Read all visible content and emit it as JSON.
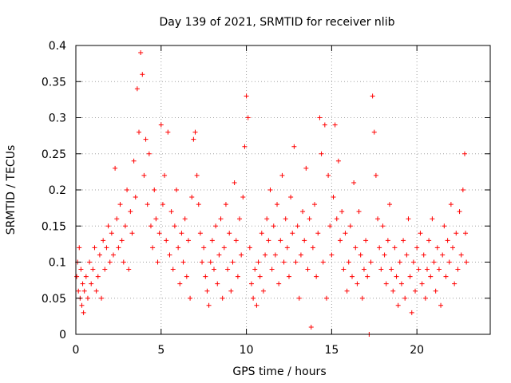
{
  "chart_data": {
    "type": "scatter",
    "title": "Day 139 of 2021, SRMTID for receiver nlib",
    "xlabel": "GPS time / hours",
    "ylabel": "SRMTID / TECUs",
    "xlim": [
      0,
      24.3
    ],
    "ylim": [
      0,
      0.4
    ],
    "xticks": [
      0,
      5,
      10,
      15,
      20
    ],
    "xtick_labels": [
      "0",
      "5",
      "10",
      "15",
      "20"
    ],
    "yticks": [
      0,
      0.05,
      0.1,
      0.15,
      0.2,
      0.25,
      0.3,
      0.35,
      0.4
    ],
    "ytick_labels": [
      "0",
      "0.05",
      "0.1",
      "0.15",
      "0.2",
      "0.25",
      "0.3",
      "0.35",
      "0.4"
    ],
    "grid": true,
    "marker": "plus",
    "series": [
      {
        "name": "SRMTID",
        "color": "#ff0000",
        "points": [
          [
            0.05,
            0.08
          ],
          [
            0.1,
            0.1
          ],
          [
            0.15,
            0.06
          ],
          [
            0.2,
            0.12
          ],
          [
            0.25,
            0.05
          ],
          [
            0.3,
            0.09
          ],
          [
            0.35,
            0.04
          ],
          [
            0.4,
            0.07
          ],
          [
            0.45,
            0.03
          ],
          [
            0.5,
            0.06
          ],
          [
            0.6,
            0.08
          ],
          [
            0.7,
            0.05
          ],
          [
            0.8,
            0.1
          ],
          [
            0.9,
            0.07
          ],
          [
            1.0,
            0.09
          ],
          [
            1.1,
            0.12
          ],
          [
            1.2,
            0.06
          ],
          [
            1.3,
            0.08
          ],
          [
            1.4,
            0.11
          ],
          [
            1.5,
            0.05
          ],
          [
            1.6,
            0.13
          ],
          [
            1.7,
            0.09
          ],
          [
            1.8,
            0.12
          ],
          [
            1.9,
            0.15
          ],
          [
            2.0,
            0.1
          ],
          [
            2.1,
            0.14
          ],
          [
            2.2,
            0.11
          ],
          [
            2.3,
            0.23
          ],
          [
            2.4,
            0.16
          ],
          [
            2.5,
            0.12
          ],
          [
            2.6,
            0.18
          ],
          [
            2.7,
            0.13
          ],
          [
            2.8,
            0.1
          ],
          [
            2.9,
            0.15
          ],
          [
            3.0,
            0.2
          ],
          [
            3.1,
            0.09
          ],
          [
            3.2,
            0.17
          ],
          [
            3.3,
            0.14
          ],
          [
            3.4,
            0.24
          ],
          [
            3.5,
            0.19
          ],
          [
            3.6,
            0.34
          ],
          [
            3.7,
            0.28
          ],
          [
            3.8,
            0.39
          ],
          [
            3.9,
            0.36
          ],
          [
            4.0,
            0.22
          ],
          [
            4.1,
            0.27
          ],
          [
            4.2,
            0.18
          ],
          [
            4.3,
            0.25
          ],
          [
            4.4,
            0.15
          ],
          [
            4.5,
            0.12
          ],
          [
            4.6,
            0.2
          ],
          [
            4.7,
            0.16
          ],
          [
            4.8,
            0.1
          ],
          [
            4.9,
            0.14
          ],
          [
            5.0,
            0.29
          ],
          [
            5.1,
            0.18
          ],
          [
            5.2,
            0.22
          ],
          [
            5.3,
            0.13
          ],
          [
            5.4,
            0.28
          ],
          [
            5.5,
            0.11
          ],
          [
            5.6,
            0.17
          ],
          [
            5.7,
            0.09
          ],
          [
            5.8,
            0.15
          ],
          [
            5.9,
            0.2
          ],
          [
            6.0,
            0.12
          ],
          [
            6.1,
            0.07
          ],
          [
            6.2,
            0.14
          ],
          [
            6.3,
            0.1
          ],
          [
            6.4,
            0.16
          ],
          [
            6.5,
            0.08
          ],
          [
            6.6,
            0.13
          ],
          [
            6.7,
            0.05
          ],
          [
            6.8,
            0.19
          ],
          [
            6.9,
            0.27
          ],
          [
            7.0,
            0.28
          ],
          [
            7.1,
            0.22
          ],
          [
            7.2,
            0.18
          ],
          [
            7.3,
            0.14
          ],
          [
            7.4,
            0.1
          ],
          [
            7.5,
            0.12
          ],
          [
            7.6,
            0.08
          ],
          [
            7.7,
            0.06
          ],
          [
            7.8,
            0.04
          ],
          [
            7.9,
            0.1
          ],
          [
            8.0,
            0.13
          ],
          [
            8.1,
            0.09
          ],
          [
            8.2,
            0.15
          ],
          [
            8.3,
            0.07
          ],
          [
            8.4,
            0.11
          ],
          [
            8.5,
            0.16
          ],
          [
            8.6,
            0.05
          ],
          [
            8.7,
            0.12
          ],
          [
            8.8,
            0.18
          ],
          [
            8.9,
            0.09
          ],
          [
            9.0,
            0.14
          ],
          [
            9.1,
            0.06
          ],
          [
            9.2,
            0.1
          ],
          [
            9.3,
            0.21
          ],
          [
            9.4,
            0.13
          ],
          [
            9.5,
            0.08
          ],
          [
            9.6,
            0.16
          ],
          [
            9.7,
            0.11
          ],
          [
            9.8,
            0.19
          ],
          [
            9.9,
            0.26
          ],
          [
            10.0,
            0.33
          ],
          [
            10.1,
            0.3
          ],
          [
            10.2,
            0.12
          ],
          [
            10.3,
            0.07
          ],
          [
            10.4,
            0.05
          ],
          [
            10.5,
            0.09
          ],
          [
            10.6,
            0.04
          ],
          [
            10.7,
            0.1
          ],
          [
            10.8,
            0.08
          ],
          [
            10.9,
            0.14
          ],
          [
            11.0,
            0.06
          ],
          [
            11.1,
            0.11
          ],
          [
            11.2,
            0.16
          ],
          [
            11.3,
            0.13
          ],
          [
            11.4,
            0.2
          ],
          [
            11.5,
            0.09
          ],
          [
            11.6,
            0.15
          ],
          [
            11.7,
            0.11
          ],
          [
            11.8,
            0.18
          ],
          [
            11.9,
            0.07
          ],
          [
            12.0,
            0.13
          ],
          [
            12.1,
            0.22
          ],
          [
            12.2,
            0.1
          ],
          [
            12.3,
            0.16
          ],
          [
            12.4,
            0.12
          ],
          [
            12.5,
            0.08
          ],
          [
            12.6,
            0.19
          ],
          [
            12.7,
            0.14
          ],
          [
            12.8,
            0.26
          ],
          [
            12.9,
            0.1
          ],
          [
            13.0,
            0.15
          ],
          [
            13.1,
            0.05
          ],
          [
            13.2,
            0.11
          ],
          [
            13.3,
            0.17
          ],
          [
            13.4,
            0.13
          ],
          [
            13.5,
            0.23
          ],
          [
            13.6,
            0.09
          ],
          [
            13.7,
            0.16
          ],
          [
            13.8,
            0.01
          ],
          [
            13.9,
            0.12
          ],
          [
            14.0,
            0.18
          ],
          [
            14.1,
            0.08
          ],
          [
            14.2,
            0.14
          ],
          [
            14.3,
            0.3
          ],
          [
            14.4,
            0.25
          ],
          [
            14.5,
            0.1
          ],
          [
            14.6,
            0.29
          ],
          [
            14.7,
            0.05
          ],
          [
            14.8,
            0.22
          ],
          [
            14.9,
            0.15
          ],
          [
            15.0,
            0.11
          ],
          [
            15.1,
            0.19
          ],
          [
            15.2,
            0.29
          ],
          [
            15.3,
            0.16
          ],
          [
            15.4,
            0.24
          ],
          [
            15.5,
            0.13
          ],
          [
            15.6,
            0.17
          ],
          [
            15.7,
            0.09
          ],
          [
            15.8,
            0.14
          ],
          [
            15.9,
            0.06
          ],
          [
            16.0,
            0.1
          ],
          [
            16.1,
            0.15
          ],
          [
            16.2,
            0.08
          ],
          [
            16.3,
            0.21
          ],
          [
            16.4,
            0.12
          ],
          [
            16.5,
            0.07
          ],
          [
            16.6,
            0.17
          ],
          [
            16.7,
            0.11
          ],
          [
            16.8,
            0.05
          ],
          [
            16.9,
            0.09
          ],
          [
            17.0,
            0.13
          ],
          [
            17.1,
            0.08
          ],
          [
            17.2,
            0.0
          ],
          [
            17.3,
            0.1
          ],
          [
            17.4,
            0.33
          ],
          [
            17.5,
            0.28
          ],
          [
            17.6,
            0.22
          ],
          [
            17.7,
            0.16
          ],
          [
            17.8,
            0.12
          ],
          [
            17.9,
            0.09
          ],
          [
            18.0,
            0.15
          ],
          [
            18.1,
            0.11
          ],
          [
            18.2,
            0.07
          ],
          [
            18.3,
            0.13
          ],
          [
            18.4,
            0.18
          ],
          [
            18.5,
            0.09
          ],
          [
            18.6,
            0.06
          ],
          [
            18.7,
            0.12
          ],
          [
            18.8,
            0.08
          ],
          [
            18.9,
            0.04
          ],
          [
            19.0,
            0.1
          ],
          [
            19.1,
            0.07
          ],
          [
            19.2,
            0.13
          ],
          [
            19.3,
            0.05
          ],
          [
            19.4,
            0.11
          ],
          [
            19.5,
            0.16
          ],
          [
            19.6,
            0.08
          ],
          [
            19.7,
            0.03
          ],
          [
            19.8,
            0.1
          ],
          [
            19.9,
            0.06
          ],
          [
            20.0,
            0.12
          ],
          [
            20.1,
            0.09
          ],
          [
            20.2,
            0.14
          ],
          [
            20.3,
            0.07
          ],
          [
            20.4,
            0.11
          ],
          [
            20.5,
            0.05
          ],
          [
            20.6,
            0.09
          ],
          [
            20.7,
            0.13
          ],
          [
            20.8,
            0.08
          ],
          [
            20.9,
            0.16
          ],
          [
            21.0,
            0.1
          ],
          [
            21.1,
            0.06
          ],
          [
            21.2,
            0.12
          ],
          [
            21.3,
            0.09
          ],
          [
            21.4,
            0.04
          ],
          [
            21.5,
            0.11
          ],
          [
            21.6,
            0.15
          ],
          [
            21.7,
            0.08
          ],
          [
            21.8,
            0.13
          ],
          [
            21.9,
            0.1
          ],
          [
            22.0,
            0.18
          ],
          [
            22.1,
            0.12
          ],
          [
            22.2,
            0.07
          ],
          [
            22.3,
            0.14
          ],
          [
            22.4,
            0.09
          ],
          [
            22.5,
            0.17
          ],
          [
            22.6,
            0.11
          ],
          [
            22.7,
            0.2
          ],
          [
            22.8,
            0.25
          ],
          [
            22.85,
            0.14
          ],
          [
            22.9,
            0.1
          ]
        ]
      }
    ]
  }
}
